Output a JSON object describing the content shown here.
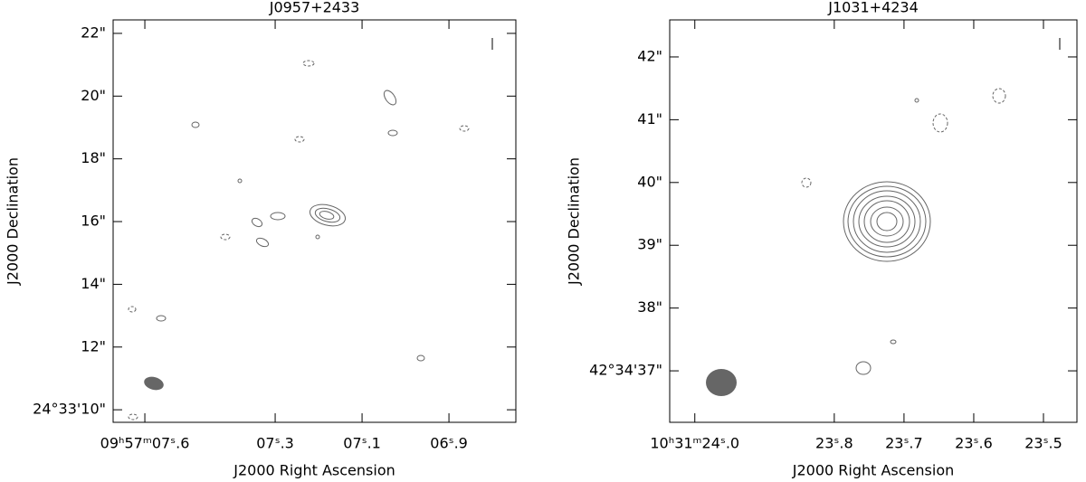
{
  "chart_data": [
    {
      "type": "contour",
      "title": "J0957+2433",
      "xlabel": "J2000 Right Ascension",
      "ylabel": "J2000 Declination",
      "xlim": [
        7.673,
        6.746
      ],
      "ylim": [
        9.6,
        22.43
      ],
      "xticks": [
        {
          "value": 7.6,
          "label": "09ʰ57ᵐ07ˢ.6"
        },
        {
          "value": 7.3,
          "label": "07ˢ.3"
        },
        {
          "value": 7.1,
          "label": "07ˢ.1"
        },
        {
          "value": 6.9,
          "label": "06ˢ.9"
        }
      ],
      "yticks": [
        {
          "value": 10,
          "label": "24°33'10\""
        },
        {
          "value": 12,
          "label": "12\""
        },
        {
          "value": 14,
          "label": "14\""
        },
        {
          "value": 16,
          "label": "16\""
        },
        {
          "value": 18,
          "label": "18\""
        },
        {
          "value": 20,
          "label": "20\""
        },
        {
          "value": 22,
          "label": "22\""
        }
      ]
    },
    {
      "type": "contour",
      "title": "J1031+4234",
      "xlabel": "J2000 Right Ascension",
      "ylabel": "J2000 Declination",
      "xlim": [
        24.036,
        23.452
      ],
      "ylim": [
        36.18,
        42.59
      ],
      "xticks": [
        {
          "value": 24.0,
          "label": "10ʰ31ᵐ24ˢ.0"
        },
        {
          "value": 23.8,
          "label": "23ˢ.8"
        },
        {
          "value": 23.7,
          "label": "23ˢ.7"
        },
        {
          "value": 23.6,
          "label": "23ˢ.6"
        },
        {
          "value": 23.5,
          "label": "23ˢ.5"
        }
      ],
      "yticks": [
        {
          "value": 37,
          "label": "42°34'37\""
        },
        {
          "value": 38,
          "label": "38\""
        },
        {
          "value": 39,
          "label": "39\""
        },
        {
          "value": 40,
          "label": "40\""
        },
        {
          "value": 41,
          "label": "41\""
        },
        {
          "value": 42,
          "label": "42\""
        }
      ]
    }
  ]
}
